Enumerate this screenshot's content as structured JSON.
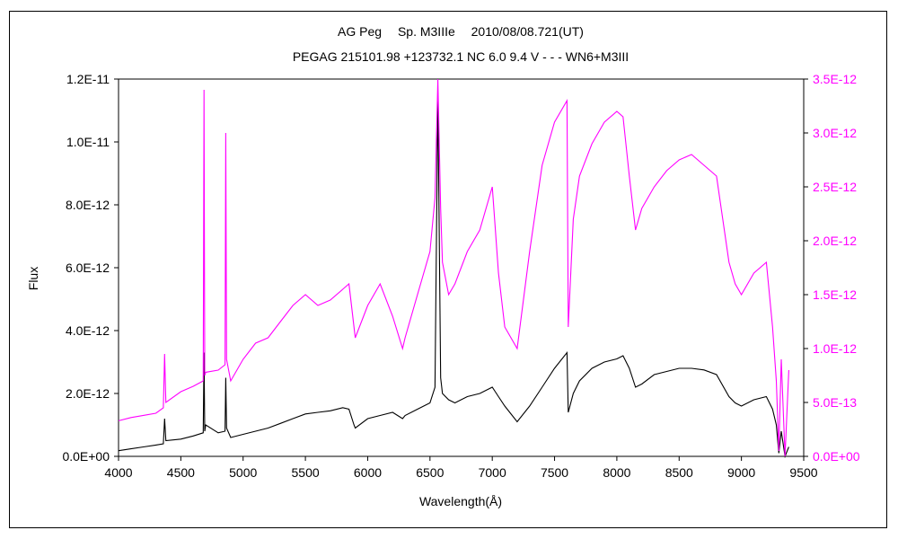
{
  "chart_data": {
    "type": "line",
    "title": "AG Peg　 Sp. M3IIIe　 2010/08/08.721(UT)",
    "subtitle": "PEGAG 215101.98 +123732.1 NC 6.0 9.4 V - - - WN6+M3III",
    "xlabel": "Wavelength(Å)",
    "ylabel": "Flux",
    "xlim": [
      4000,
      9500
    ],
    "ylim": [
      0,
      1.2e-11
    ],
    "y2lim": [
      0,
      3.5e-12
    ],
    "grid": false,
    "x_ticks": [
      "4000",
      "4500",
      "5000",
      "5500",
      "6000",
      "6500",
      "7000",
      "7500",
      "8000",
      "8500",
      "9000",
      "9500"
    ],
    "y_ticks": [
      "0.0E+00",
      "2.0E-12",
      "4.0E-12",
      "6.0E-12",
      "8.0E-12",
      "1.0E-11",
      "1.2E-11"
    ],
    "y2_ticks": [
      "0.0E+00",
      "5.0E-13",
      "1.0E-12",
      "1.5E-12",
      "2.0E-12",
      "2.5E-12",
      "3.0E-12",
      "3.5E-12"
    ],
    "colors": {
      "series1": "#000000",
      "series2": "#ff00ff"
    },
    "series": [
      {
        "axis": "left",
        "color": "#000000",
        "x": [
          4000,
          4100,
          4200,
          4300,
          4360,
          4370,
          4380,
          4500,
          4600,
          4680,
          4686,
          4692,
          4700,
          4800,
          4855,
          4861,
          4867,
          4900,
          5000,
          5100,
          5200,
          5300,
          5400,
          5500,
          5600,
          5700,
          5800,
          5850,
          5890,
          5900,
          6000,
          6100,
          6200,
          6280,
          6300,
          6400,
          6500,
          6540,
          6563,
          6586,
          6600,
          6650,
          6700,
          6800,
          6900,
          7000,
          7050,
          7100,
          7200,
          7300,
          7400,
          7500,
          7600,
          7610,
          7650,
          7700,
          7800,
          7900,
          8000,
          8050,
          8100,
          8150,
          8200,
          8300,
          8400,
          8500,
          8600,
          8700,
          8800,
          8900,
          8950,
          9000,
          9100,
          9200,
          9250,
          9280,
          9300,
          9320,
          9350,
          9380
        ],
        "values": [
          1.8e-13,
          2.4e-13,
          3e-13,
          3.6e-13,
          4e-13,
          1.2e-12,
          5e-13,
          5.5e-13,
          6.5e-13,
          7.5e-13,
          3.3e-12,
          8e-13,
          1e-12,
          7.5e-13,
          8e-13,
          2.5e-12,
          9e-13,
          6e-13,
          7e-13,
          8e-13,
          9e-13,
          1.05e-12,
          1.2e-12,
          1.35e-12,
          1.4e-12,
          1.45e-12,
          1.55e-12,
          1.5e-12,
          1e-12,
          9e-13,
          1.2e-12,
          1.3e-12,
          1.4e-12,
          1.2e-12,
          1.3e-12,
          1.5e-12,
          1.7e-12,
          2.2e-12,
          1.15e-11,
          2.5e-12,
          2e-12,
          1.8e-12,
          1.7e-12,
          1.9e-12,
          2e-12,
          2.2e-12,
          1.9e-12,
          1.6e-12,
          1.1e-12,
          1.6e-12,
          2.2e-12,
          2.8e-12,
          3.3e-12,
          1.4e-12,
          2e-12,
          2.4e-12,
          2.8e-12,
          3e-12,
          3.1e-12,
          3.2e-12,
          2.8e-12,
          2.2e-12,
          2.3e-12,
          2.6e-12,
          2.7e-12,
          2.8e-12,
          2.8e-12,
          2.75e-12,
          2.6e-12,
          1.9e-12,
          1.7e-12,
          1.6e-12,
          1.8e-12,
          1.9e-12,
          1.5e-12,
          1e-12,
          1e-13,
          8e-13,
          0.0,
          3e-13
        ]
      },
      {
        "axis": "right",
        "color": "#ff00ff",
        "x": [
          4000,
          4100,
          4200,
          4300,
          4360,
          4370,
          4380,
          4500,
          4600,
          4680,
          4686,
          4692,
          4700,
          4800,
          4855,
          4861,
          4867,
          4900,
          5000,
          5100,
          5200,
          5300,
          5400,
          5500,
          5600,
          5700,
          5800,
          5850,
          5890,
          5900,
          6000,
          6100,
          6200,
          6280,
          6300,
          6400,
          6500,
          6540,
          6563,
          6586,
          6600,
          6650,
          6700,
          6800,
          6900,
          7000,
          7050,
          7100,
          7200,
          7300,
          7400,
          7500,
          7600,
          7610,
          7650,
          7700,
          7800,
          7900,
          8000,
          8050,
          8100,
          8150,
          8200,
          8300,
          8400,
          8500,
          8600,
          8700,
          8800,
          8900,
          8950,
          9000,
          9100,
          9200,
          9250,
          9280,
          9300,
          9320,
          9350,
          9380
        ],
        "values": [
          3.3e-13,
          3.6e-13,
          3.8e-13,
          4e-13,
          4.5e-13,
          9.5e-13,
          5e-13,
          6e-13,
          6.5e-13,
          7e-13,
          3.4e-12,
          7.5e-13,
          7.8e-13,
          8e-13,
          8.5e-13,
          3e-12,
          9e-13,
          7e-13,
          9e-13,
          1.05e-12,
          1.1e-12,
          1.25e-12,
          1.4e-12,
          1.5e-12,
          1.4e-12,
          1.45e-12,
          1.55e-12,
          1.6e-12,
          1.2e-12,
          1.1e-12,
          1.4e-12,
          1.6e-12,
          1.3e-12,
          1e-12,
          1.1e-12,
          1.5e-12,
          1.9e-12,
          2.4e-12,
          3.5e-12,
          2.3e-12,
          1.8e-12,
          1.5e-12,
          1.6e-12,
          1.9e-12,
          2.1e-12,
          2.5e-12,
          1.7e-12,
          1.2e-12,
          1e-12,
          1.9e-12,
          2.7e-12,
          3.1e-12,
          3.3e-12,
          1.2e-12,
          2.2e-12,
          2.6e-12,
          2.9e-12,
          3.1e-12,
          3.2e-12,
          3.15e-12,
          2.6e-12,
          2.1e-12,
          2.3e-12,
          2.5e-12,
          2.65e-12,
          2.75e-12,
          2.8e-12,
          2.7e-12,
          2.6e-12,
          1.8e-12,
          1.6e-12,
          1.5e-12,
          1.7e-12,
          1.8e-12,
          1.2e-12,
          7e-13,
          5e-14,
          9e-13,
          0.0,
          8e-13
        ]
      }
    ]
  }
}
